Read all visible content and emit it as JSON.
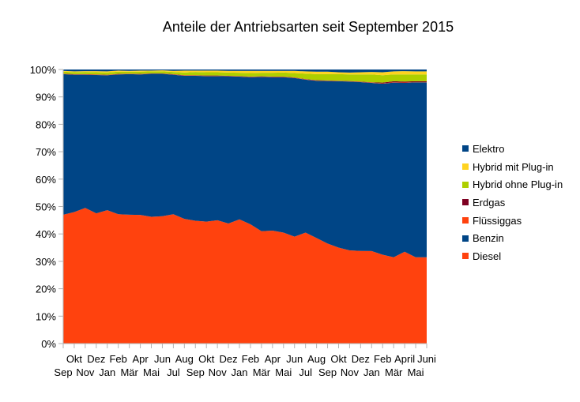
{
  "chart_data": {
    "type": "area",
    "stacked": true,
    "normalized": true,
    "title": "Anteile der Antriebsarten seit September 2015",
    "xlabel": "",
    "ylabel": "",
    "ylim": [
      0,
      100
    ],
    "y_ticks": [
      "0%",
      "10%",
      "20%",
      "30%",
      "40%",
      "50%",
      "60%",
      "70%",
      "80%",
      "90%",
      "100%"
    ],
    "grid": false,
    "legend_position": "right",
    "categories": [
      "Sep",
      "Okt",
      "Nov",
      "Dez",
      "Jan",
      "Feb",
      "Mär",
      "Apr",
      "Mai",
      "Jun",
      "Jul",
      "Aug",
      "Sep",
      "Okt",
      "Nov",
      "Dez",
      "Jan",
      "Feb",
      "Mär",
      "Apr",
      "Mai",
      "Jun",
      "Jul",
      "Aug",
      "Sep",
      "Okt",
      "Nov",
      "Dez",
      "Jan",
      "Feb",
      "Mär",
      "April",
      "Mai",
      "Juni"
    ],
    "series": [
      {
        "name": "Diesel",
        "color": "#ff420e",
        "values": [
          47,
          48,
          49.5,
          47.5,
          48.7,
          47.2,
          47,
          47,
          46.3,
          46.5,
          47.2,
          45.5,
          44.8,
          44.5,
          45,
          43.8,
          45.3,
          43.5,
          41,
          41.2,
          40.5,
          39,
          40.5,
          38.5,
          36.5,
          35,
          34,
          33.8,
          33.8,
          32.5,
          31.5,
          33.5,
          31.5,
          31.5
        ]
      },
      {
        "name": "Benzin",
        "color": "#004586",
        "values": [
          51.3,
          50.1,
          48.6,
          50.5,
          49.3,
          51,
          51.3,
          51.3,
          52.2,
          52,
          50.9,
          52.2,
          52.9,
          53.1,
          52.6,
          53.7,
          52.1,
          53.7,
          56.3,
          56,
          56.7,
          57.9,
          55.8,
          57.4,
          59.3,
          60.7,
          61.6,
          61.6,
          61.4,
          62.6,
          63.7,
          61.6,
          63.8,
          63.8
        ]
      },
      {
        "name": "Flüssiggas",
        "color": "#ff420e",
        "values": [
          0.1,
          0.1,
          0.1,
          0.1,
          0.1,
          0.1,
          0.1,
          0.1,
          0.1,
          0.1,
          0.1,
          0.1,
          0.1,
          0.1,
          0.1,
          0.1,
          0.1,
          0.1,
          0.1,
          0.1,
          0.1,
          0.1,
          0.1,
          0.1,
          0.1,
          0.1,
          0.1,
          0.1,
          0.1,
          0.1,
          0.1,
          0.1,
          0.1,
          0.1
        ]
      },
      {
        "name": "Erdgas",
        "color": "#7e0021",
        "values": [
          0.1,
          0.1,
          0.1,
          0.1,
          0.1,
          0.1,
          0.1,
          0.1,
          0.1,
          0.1,
          0.1,
          0.1,
          0.1,
          0.1,
          0.1,
          0.1,
          0.1,
          0.1,
          0.1,
          0.1,
          0.1,
          0.1,
          0.1,
          0.1,
          0.1,
          0.1,
          0.1,
          0.1,
          0.1,
          0.3,
          0.4,
          0.4,
          0.3,
          0.3
        ]
      },
      {
        "name": "Hybrid ohne Plug-in",
        "color": "#aecf00",
        "values": [
          0.7,
          0.7,
          0.8,
          0.8,
          0.8,
          0.8,
          0.7,
          0.8,
          0.7,
          0.7,
          0.8,
          1,
          1.2,
          1.2,
          1.2,
          1.2,
          1.2,
          1.3,
          1.3,
          1.4,
          1.5,
          1.6,
          2,
          2.2,
          2.3,
          2.4,
          2.4,
          2.6,
          2.9,
          2.7,
          2.5,
          2.6,
          2.5,
          2.5
        ]
      },
      {
        "name": "Hybrid mit Plug-in",
        "color": "#ffd320",
        "values": [
          0.3,
          0.3,
          0.3,
          0.4,
          0.4,
          0.4,
          0.3,
          0.4,
          0.3,
          0.4,
          0.4,
          0.7,
          0.5,
          0.6,
          0.6,
          0.6,
          0.7,
          0.8,
          0.7,
          0.7,
          0.6,
          0.8,
          0.8,
          0.9,
          0.9,
          0.7,
          0.7,
          0.8,
          0.9,
          1.1,
          1.1,
          1.2,
          1.1,
          1.1
        ]
      },
      {
        "name": "Elektro",
        "color": "#004586",
        "values": [
          0.5,
          0.7,
          0.6,
          0.6,
          0.7,
          0.4,
          0.5,
          0.4,
          0.4,
          0.3,
          0.5,
          0.4,
          0.4,
          0.4,
          0.4,
          0.5,
          0.5,
          0.5,
          0.5,
          0.5,
          0.5,
          0.5,
          0.7,
          0.8,
          0.8,
          1,
          1.1,
          1,
          0.9,
          1,
          0.7,
          0.6,
          0.7,
          0.7
        ]
      }
    ]
  }
}
